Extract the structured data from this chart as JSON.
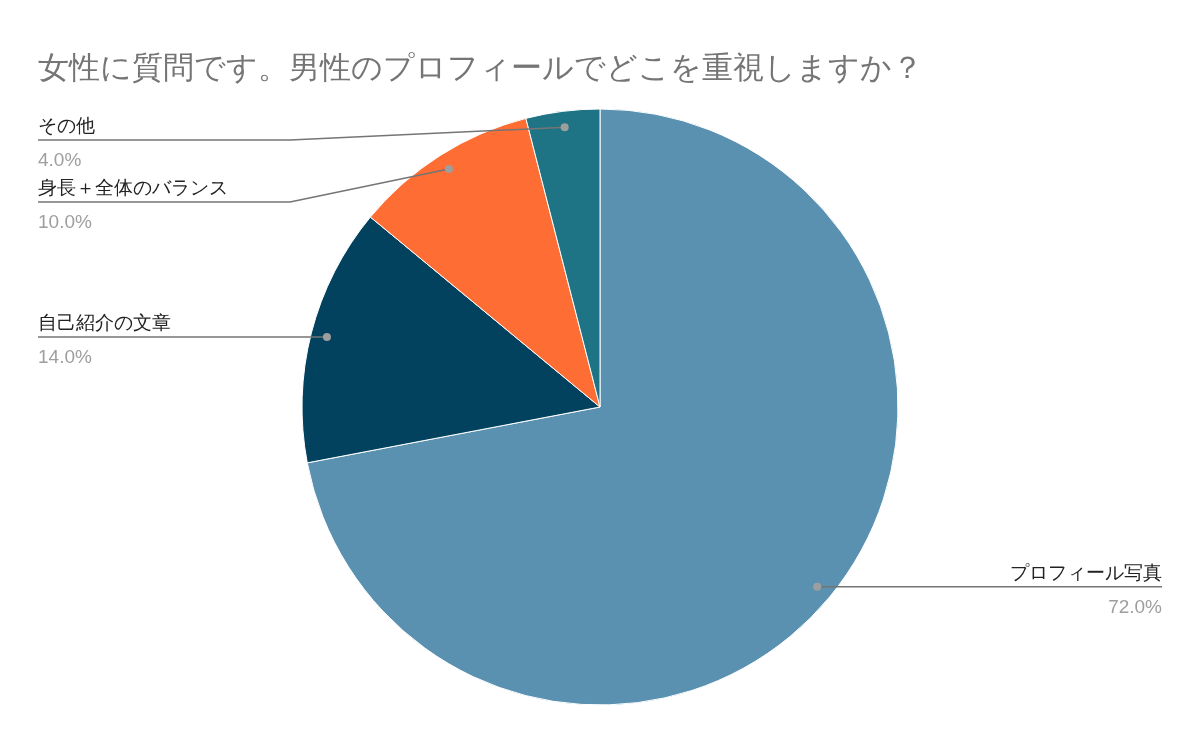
{
  "chart_data": {
    "type": "pie",
    "title": "女性に質問です。男性のプロフィールでどこを重視しますか？",
    "categories": [
      "プロフィール写真",
      "自己紹介の文章",
      "身長＋全体のバランス",
      "その他"
    ],
    "values": [
      72,
      14,
      10,
      4
    ],
    "value_labels": [
      "72.0%",
      "14.0%",
      "10.0%",
      "4.0%"
    ],
    "colors": [
      "#5a91b0",
      "#02425f",
      "#fe6d33",
      "#1e7384"
    ]
  }
}
